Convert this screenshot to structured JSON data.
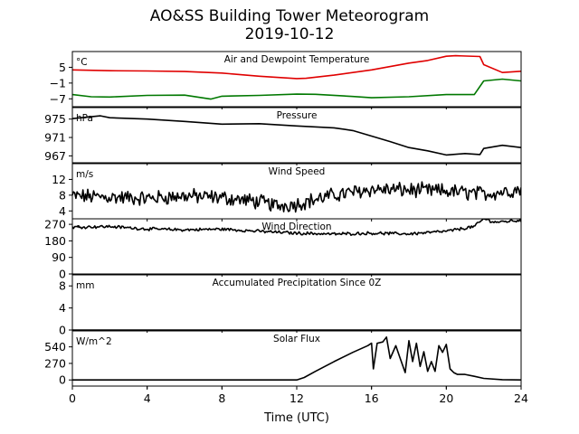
{
  "figure": {
    "title": "AO&SS Building Tower Meteorogram",
    "subtitle": "2019-10-12",
    "xlabel": "Time (UTC)"
  },
  "chart_data": [
    {
      "type": "line",
      "title": "Air and Dewpoint Temperature",
      "ylabel": "°C",
      "xlim": [
        0,
        24
      ],
      "xticks": [
        0,
        4,
        8,
        12,
        16,
        20,
        24
      ],
      "ylim": [
        -10,
        11
      ],
      "yticks": [
        5,
        -1,
        -7
      ],
      "ytick_labels": [
        "5",
        "−1",
        "−7"
      ],
      "series": [
        {
          "color": "#e00000",
          "x": [
            0,
            2,
            4,
            6,
            8,
            10,
            12,
            12.5,
            14,
            16,
            18,
            19,
            20,
            20.5,
            21.8,
            22,
            23,
            24
          ],
          "y": [
            4,
            3.7,
            3.6,
            3.4,
            2.8,
            1.6,
            0.7,
            0.8,
            2.0,
            4.0,
            6.6,
            7.6,
            9.2,
            9.4,
            9.1,
            6.0,
            3.0,
            3.5
          ]
        },
        {
          "color": "#007800",
          "x": [
            0,
            1,
            2,
            4,
            6,
            7.4,
            8,
            10,
            12,
            13,
            15,
            16,
            18,
            20,
            21.5,
            22,
            23,
            24
          ],
          "y": [
            -5.4,
            -6.2,
            -6.3,
            -5.7,
            -5.6,
            -7.1,
            -6.0,
            -5.7,
            -5.2,
            -5.3,
            -6.1,
            -6.6,
            -6.2,
            -5.4,
            -5.4,
            -0.2,
            0.5,
            -0.2
          ]
        }
      ]
    },
    {
      "type": "line",
      "title": "Pressure",
      "ylabel": "hPa",
      "xlim": [
        0,
        24
      ],
      "ylim": [
        965.5,
        977.5
      ],
      "yticks": [
        975,
        971,
        967
      ],
      "ytick_labels": [
        "975",
        "971",
        "967"
      ],
      "series": [
        {
          "color": "#000000",
          "x": [
            0,
            1.5,
            2,
            4,
            6,
            8,
            10,
            12,
            14,
            15,
            16,
            17,
            18,
            19,
            20,
            21,
            21.8,
            22,
            23,
            24
          ],
          "y": [
            975.1,
            975.7,
            975.3,
            975.0,
            974.5,
            973.9,
            974.0,
            973.5,
            973.1,
            972.5,
            971.3,
            970.1,
            968.8,
            968.1,
            967.2,
            967.5,
            967.3,
            968.6,
            969.3,
            968.8
          ]
        }
      ]
    },
    {
      "type": "line",
      "title": "Wind Speed",
      "ylabel": "m/s",
      "xlim": [
        0,
        24
      ],
      "ylim": [
        2,
        16
      ],
      "yticks": [
        12,
        8,
        4
      ],
      "ytick_labels": [
        "12",
        "8",
        "4"
      ],
      "series": [
        {
          "color": "#000000",
          "noise": 1.6,
          "x": [
            0,
            2,
            4,
            6,
            8,
            10,
            11,
            12,
            14,
            16,
            18,
            20,
            22,
            24
          ],
          "y": [
            7.8,
            7.5,
            7.2,
            7.8,
            7.4,
            6.3,
            5.3,
            5.8,
            8.0,
            9.5,
            9.3,
            9.0,
            8.3,
            9.5
          ]
        }
      ]
    },
    {
      "type": "line",
      "title": "Wind Direction",
      "ylabel": "°",
      "xlim": [
        0,
        24
      ],
      "ylim": [
        0,
        300
      ],
      "yticks": [
        270,
        180,
        90,
        0
      ],
      "ytick_labels": [
        "270",
        "180",
        "90",
        "0"
      ],
      "series": [
        {
          "color": "#000000",
          "noise": 7,
          "x": [
            0,
            2,
            4,
            6,
            8,
            10,
            12,
            14,
            16,
            18,
            20,
            21.5,
            22,
            22.6,
            23,
            24
          ],
          "y": [
            255,
            258,
            245,
            240,
            244,
            232,
            222,
            217,
            222,
            218,
            232,
            258,
            300,
            282,
            284,
            292
          ]
        }
      ]
    },
    {
      "type": "line",
      "title": "Accumulated Precipitation Since 0Z",
      "ylabel": "mm",
      "xlim": [
        0,
        24
      ],
      "ylim": [
        0,
        10
      ],
      "yticks": [
        8,
        4,
        0
      ],
      "ytick_labels": [
        "8",
        "4",
        "0"
      ],
      "series": [
        {
          "color": "#000000",
          "x": [
            0,
            24
          ],
          "y": [
            0,
            0
          ]
        }
      ]
    },
    {
      "type": "line",
      "title": "Solar Flux",
      "ylabel": "W/m^2",
      "xlim": [
        0,
        24
      ],
      "ylim": [
        -100,
        800
      ],
      "yticks": [
        540,
        270,
        0
      ],
      "ytick_labels": [
        "540",
        "270",
        "0"
      ],
      "series": [
        {
          "color": "#000000",
          "x": [
            0,
            12,
            12.4,
            13,
            14,
            15,
            15.8,
            16,
            16.1,
            16.3,
            16.6,
            16.8,
            17,
            17.3,
            17.5,
            17.8,
            18,
            18.2,
            18.4,
            18.6,
            18.8,
            19,
            19.2,
            19.4,
            19.6,
            19.8,
            20,
            20.2,
            20.4,
            20.6,
            21,
            21.5,
            22,
            23,
            24
          ],
          "y": [
            0,
            0,
            40,
            140,
            300,
            450,
            560,
            600,
            180,
            600,
            620,
            700,
            350,
            560,
            380,
            120,
            640,
            300,
            600,
            220,
            460,
            140,
            300,
            140,
            560,
            450,
            580,
            180,
            120,
            90,
            90,
            60,
            25,
            5,
            0
          ]
        }
      ]
    }
  ]
}
